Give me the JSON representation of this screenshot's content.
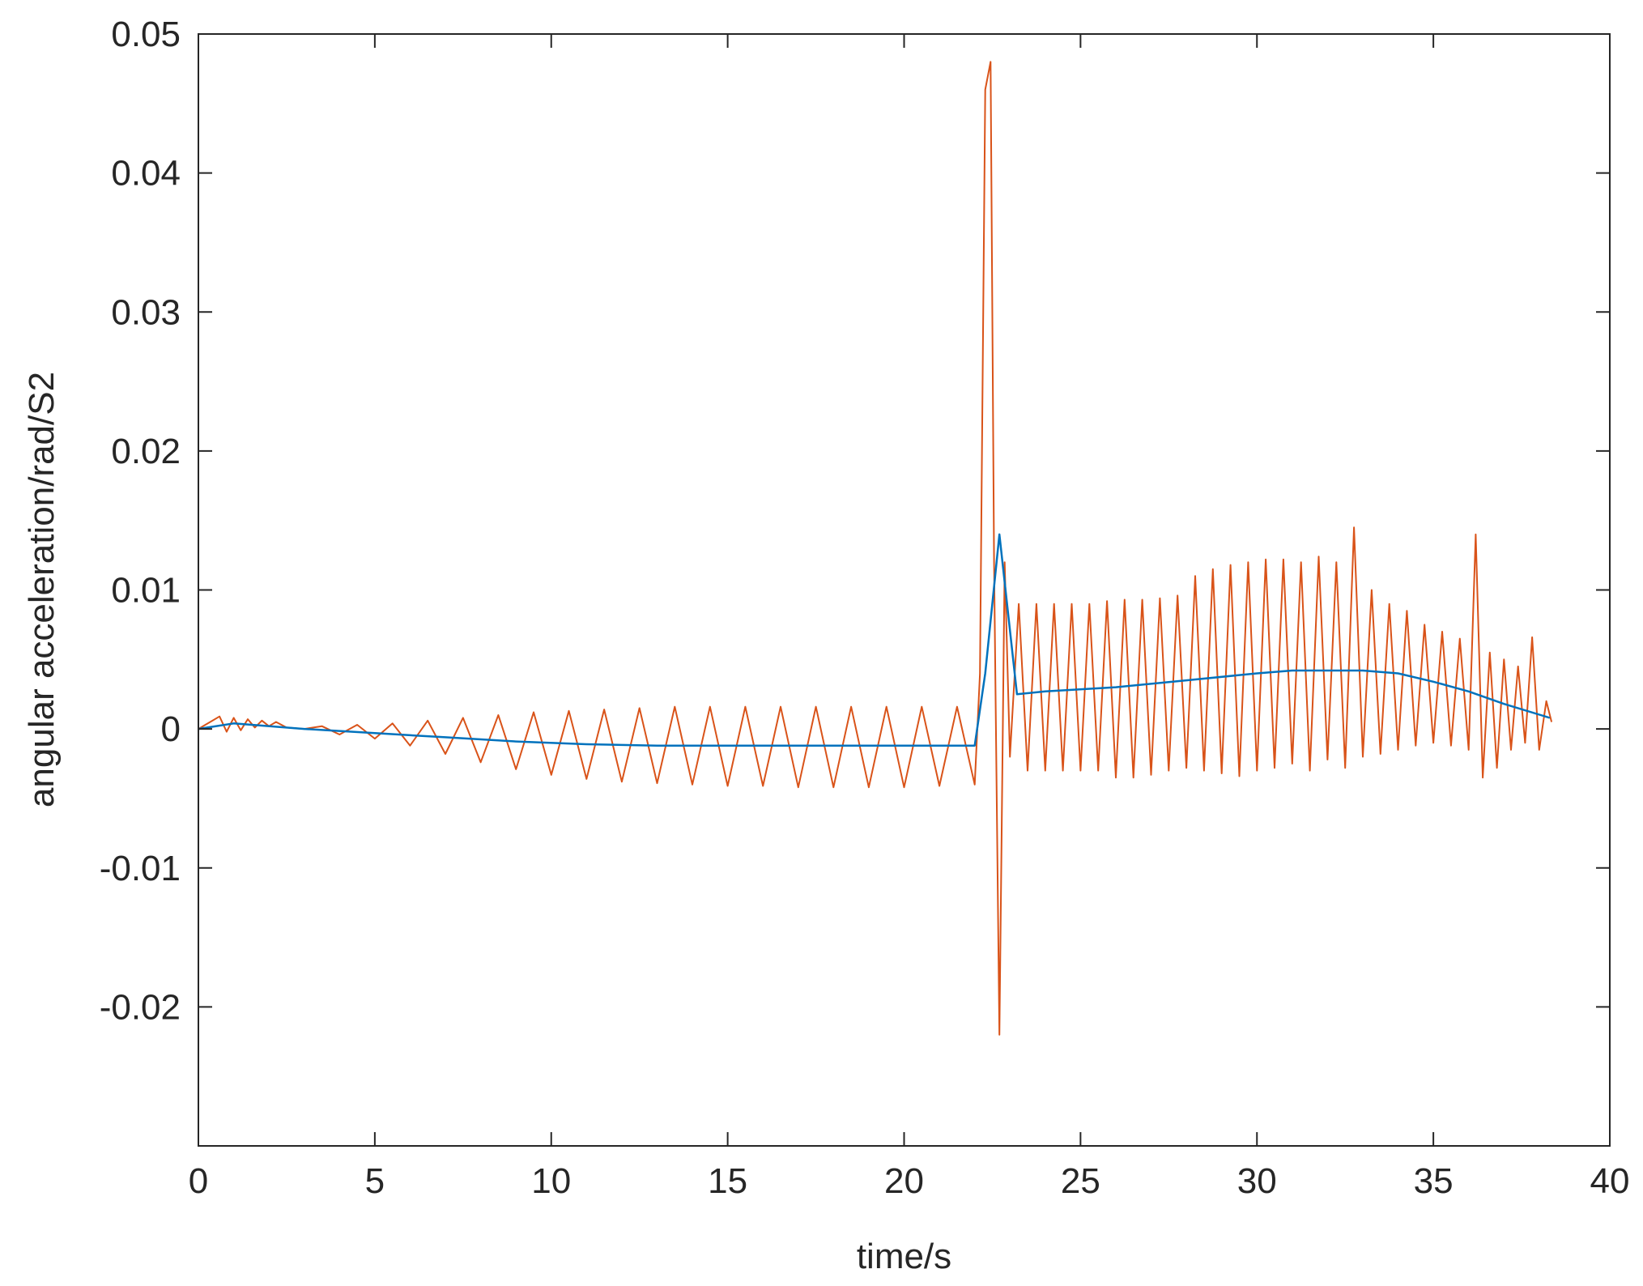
{
  "chart_data": {
    "type": "line",
    "title": "",
    "xlabel": "time/s",
    "ylabel": "angular acceleration/rad/S2",
    "xlim": [
      0,
      40
    ],
    "ylim": [
      -0.03,
      0.05
    ],
    "xticks": [
      0,
      5,
      10,
      15,
      20,
      25,
      30,
      35,
      40
    ],
    "xtick_labels": [
      "0",
      "5",
      "10",
      "15",
      "20",
      "25",
      "30",
      "35",
      "40"
    ],
    "yticks": [
      -0.02,
      -0.01,
      0,
      0.01,
      0.02,
      0.03,
      0.04,
      0.05
    ],
    "ytick_labels": [
      "-0.02",
      "-0.01",
      "0",
      "0.01",
      "0.02",
      "0.03",
      "0.04",
      "0.05"
    ],
    "grid": false,
    "box": true,
    "series": [
      {
        "color": "#D95319",
        "x": [
          0,
          0.6,
          0.8,
          1.0,
          1.2,
          1.4,
          1.6,
          1.8,
          2.0,
          2.2,
          2.5,
          3.0,
          3.5,
          4.0,
          4.5,
          5.0,
          5.5,
          6.0,
          6.5,
          7.0,
          7.5,
          8.0,
          8.5,
          9.0,
          9.5,
          10.0,
          10.5,
          11.0,
          11.5,
          12.0,
          12.5,
          13.0,
          13.5,
          14.0,
          14.5,
          15.0,
          15.5,
          16.0,
          16.5,
          17.0,
          17.5,
          18.0,
          18.5,
          19.0,
          19.5,
          20.0,
          20.5,
          21.0,
          21.5,
          22.0,
          22.15,
          22.3,
          22.45,
          22.55,
          22.7,
          22.85,
          23.0,
          23.25,
          23.5,
          23.75,
          24.0,
          24.25,
          24.5,
          24.75,
          25.0,
          25.25,
          25.5,
          25.75,
          26.0,
          26.25,
          26.5,
          26.75,
          27.0,
          27.25,
          27.5,
          27.75,
          28.0,
          28.25,
          28.5,
          28.75,
          29.0,
          29.25,
          29.5,
          29.75,
          30.0,
          30.25,
          30.5,
          30.75,
          31.0,
          31.25,
          31.5,
          31.75,
          32.0,
          32.25,
          32.5,
          32.75,
          33.0,
          33.25,
          33.5,
          33.75,
          34.0,
          34.25,
          34.5,
          34.75,
          35.0,
          35.25,
          35.5,
          35.75,
          36.0,
          36.2,
          36.4,
          36.6,
          36.8,
          37.0,
          37.2,
          37.4,
          37.6,
          37.8,
          38.0,
          38.2,
          38.35
        ],
        "y": [
          0,
          0.0009,
          -0.0002,
          0.0008,
          -0.0001,
          0.0007,
          0.0001,
          0.0006,
          0.0002,
          0.0005,
          0.0001,
          0.0,
          0.0002,
          -0.0004,
          0.0003,
          -0.0007,
          0.0004,
          -0.0012,
          0.0006,
          -0.0018,
          0.0008,
          -0.0024,
          0.001,
          -0.0029,
          0.0012,
          -0.0033,
          0.0013,
          -0.0036,
          0.0014,
          -0.0038,
          0.0015,
          -0.0039,
          0.0016,
          -0.004,
          0.0016,
          -0.0041,
          0.0016,
          -0.0041,
          0.0016,
          -0.0042,
          0.0016,
          -0.0042,
          0.0016,
          -0.0042,
          0.0016,
          -0.0042,
          0.0016,
          -0.0041,
          0.0016,
          -0.004,
          0.004,
          0.046,
          0.048,
          0.012,
          -0.022,
          0.012,
          -0.002,
          0.009,
          -0.003,
          0.009,
          -0.003,
          0.009,
          -0.003,
          0.009,
          -0.003,
          0.009,
          -0.003,
          0.0092,
          -0.0035,
          0.0093,
          -0.0035,
          0.0093,
          -0.0033,
          0.0094,
          -0.003,
          0.0096,
          -0.0028,
          0.011,
          -0.003,
          0.0115,
          -0.0032,
          0.0118,
          -0.0034,
          0.012,
          -0.003,
          0.0122,
          -0.0028,
          0.0122,
          -0.0025,
          0.012,
          -0.003,
          0.0124,
          -0.0022,
          0.012,
          -0.0028,
          0.0145,
          -0.002,
          0.01,
          -0.0018,
          0.009,
          -0.0015,
          0.0085,
          -0.0012,
          0.0075,
          -0.001,
          0.007,
          -0.0012,
          0.0065,
          -0.0015,
          0.014,
          -0.0035,
          0.0055,
          -0.0028,
          0.005,
          -0.0015,
          0.0045,
          -0.001,
          0.0066,
          -0.0015,
          0.002,
          0.0005
        ]
      },
      {
        "color": "#0072BD",
        "x": [
          0,
          1,
          3,
          5,
          7,
          9,
          11,
          13,
          15,
          17,
          19,
          21,
          22.0,
          22.3,
          22.7,
          23.2,
          24,
          26,
          28,
          30,
          31,
          32,
          33,
          34,
          35,
          36,
          37,
          38.3
        ],
        "y": [
          0,
          0.0004,
          0.0,
          -0.0003,
          -0.0006,
          -0.0009,
          -0.0011,
          -0.0012,
          -0.0012,
          -0.0012,
          -0.0012,
          -0.0012,
          -0.0012,
          0.004,
          0.014,
          0.0025,
          0.0027,
          0.003,
          0.0035,
          0.004,
          0.0042,
          0.0042,
          0.0042,
          0.004,
          0.0034,
          0.0027,
          0.0018,
          0.0008
        ]
      }
    ]
  }
}
